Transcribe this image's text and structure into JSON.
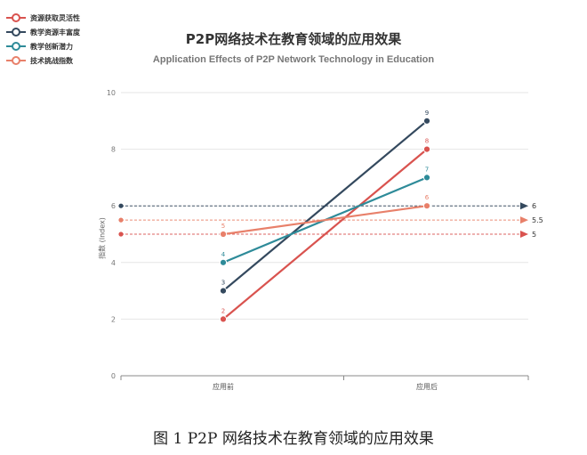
{
  "page": {
    "caption": "图 1 P2P 网络技术在教育领域的应用效果"
  },
  "chart_data": {
    "type": "line",
    "title": "P2P网络技术在教育领域的应用效果",
    "subtitle": "Application Effects of P2P Network Technology in Education",
    "xlabel": "",
    "ylabel": "指数 (Index)",
    "categories": [
      "应用前",
      "应用后"
    ],
    "ylim": [
      0,
      10
    ],
    "yticks": [
      0,
      2,
      4,
      6,
      8,
      10
    ],
    "grid": true,
    "legend_position": "top-left",
    "series": [
      {
        "name": "资源获取灵活性",
        "values": [
          2,
          8
        ],
        "color": "#d9534f",
        "baseline": 5
      },
      {
        "name": "教学资源丰富度",
        "values": [
          3,
          9
        ],
        "color": "#34495e",
        "baseline": 6
      },
      {
        "name": "教学创新潜力",
        "values": [
          4,
          7
        ],
        "color": "#2e8b99",
        "baseline": null
      },
      {
        "name": "技术挑战指数",
        "values": [
          5,
          6
        ],
        "color": "#e8806a",
        "baseline": 5.5
      }
    ],
    "reference_labels": [
      "6",
      "5.5",
      "5"
    ]
  }
}
